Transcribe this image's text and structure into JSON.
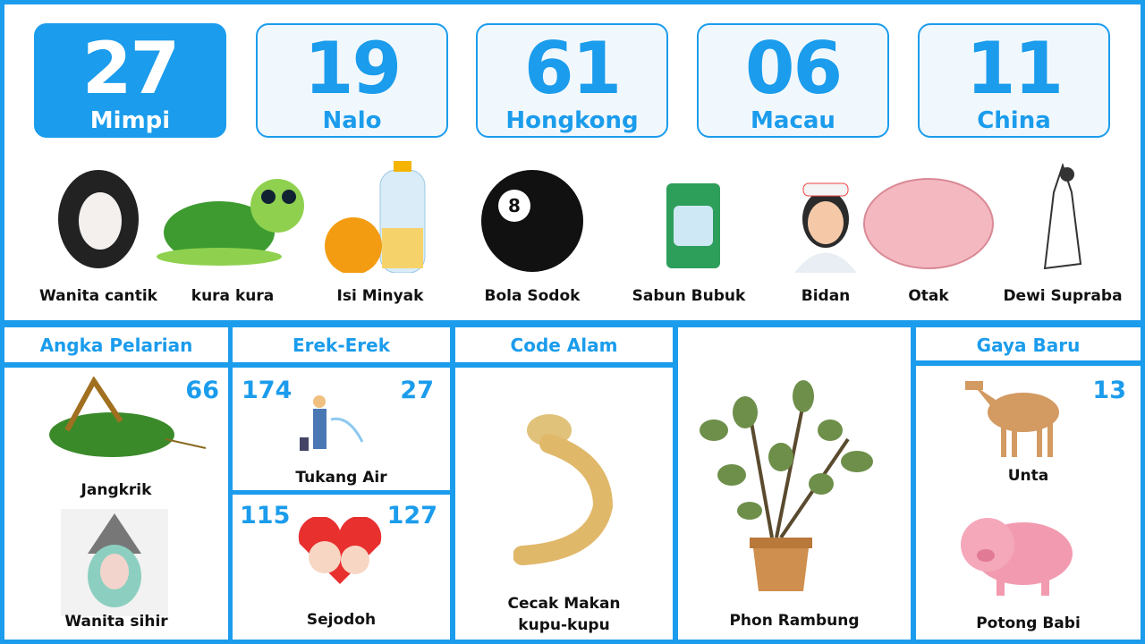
{
  "numbers": [
    {
      "value": "27",
      "label": "Mimpi",
      "active": true
    },
    {
      "value": "19",
      "label": "Nalo"
    },
    {
      "value": "61",
      "label": "Hongkong"
    },
    {
      "value": "06",
      "label": "Macau"
    },
    {
      "value": "11",
      "label": "China"
    }
  ],
  "dreams": [
    "Wanita cantik",
    "kura kura",
    "Isi Minyak",
    "Bola Sodok",
    "Sabun Bubuk",
    "Bidan",
    "Otak",
    "Dewi Supraba"
  ],
  "angka_pelarian": {
    "title": "Angka Pelarian",
    "number": "66",
    "items": [
      "Jangkrik",
      "Wanita sihir"
    ]
  },
  "erek_erek": {
    "title": "Erek-Erek",
    "top": {
      "left": "174",
      "right": "27",
      "label": "Tukang Air"
    },
    "bottom": {
      "left": "115",
      "right": "127",
      "label": "Sejodoh"
    }
  },
  "code_alam": {
    "title": "Code Alam",
    "label_line1": "Cecak Makan",
    "label_line2": "kupu-kupu"
  },
  "center": {
    "label": "Phon Rambung"
  },
  "gaya_baru": {
    "title": "Gaya Baru",
    "number": "13",
    "items": [
      "Unta",
      "Potong Babi"
    ]
  },
  "colors": {
    "accent": "#1b9cec"
  }
}
